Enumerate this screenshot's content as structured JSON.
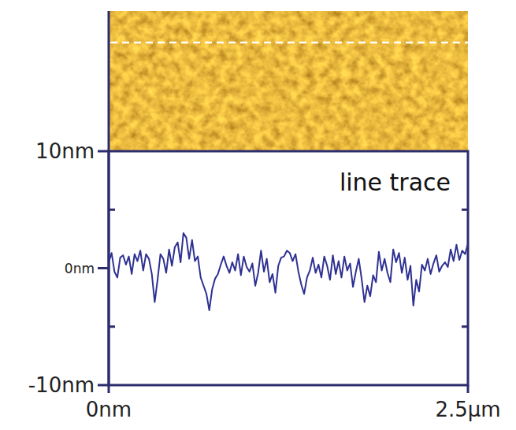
{
  "chart_data": {
    "type": "line",
    "annotation": "line trace",
    "color": "#2e3192",
    "xlim": [
      0,
      2.5
    ],
    "xticks": [
      {
        "value": 0,
        "label": "0nm"
      },
      {
        "value": 2.5,
        "label": "2.5µm"
      }
    ],
    "ylim": [
      -10,
      10
    ],
    "yticks": [
      {
        "value": -10,
        "label": "-10nm"
      },
      {
        "value": 0,
        "label": "0nm"
      },
      {
        "value": 10,
        "label": "10nm"
      }
    ],
    "x": [
      0,
      0.02,
      0.04,
      0.06,
      0.08,
      0.1,
      0.12,
      0.14,
      0.16,
      0.18,
      0.2,
      0.22,
      0.24,
      0.26,
      0.28,
      0.3,
      0.32,
      0.34,
      0.36,
      0.38,
      0.4,
      0.42,
      0.44,
      0.46,
      0.48,
      0.5,
      0.52,
      0.54,
      0.56,
      0.58,
      0.6,
      0.62,
      0.64,
      0.66,
      0.68,
      0.7,
      0.72,
      0.74,
      0.76,
      0.78,
      0.8,
      0.82,
      0.84,
      0.86,
      0.88,
      0.9,
      0.92,
      0.94,
      0.96,
      0.98,
      1.0,
      1.02,
      1.04,
      1.06,
      1.08,
      1.1,
      1.12,
      1.14,
      1.16,
      1.18,
      1.2,
      1.22,
      1.24,
      1.26,
      1.28,
      1.3,
      1.32,
      1.34,
      1.36,
      1.38,
      1.4,
      1.42,
      1.44,
      1.46,
      1.48,
      1.5,
      1.52,
      1.54,
      1.56,
      1.58,
      1.6,
      1.62,
      1.64,
      1.66,
      1.68,
      1.7,
      1.72,
      1.74,
      1.76,
      1.78,
      1.8,
      1.82,
      1.84,
      1.86,
      1.88,
      1.9,
      1.92,
      1.94,
      1.96,
      1.98,
      2.0,
      2.02,
      2.04,
      2.06,
      2.08,
      2.1,
      2.12,
      2.14,
      2.16,
      2.18,
      2.2,
      2.22,
      2.24,
      2.26,
      2.28,
      2.3,
      2.32,
      2.34,
      2.36,
      2.38,
      2.4,
      2.42,
      2.44,
      2.46,
      2.48,
      2.5
    ],
    "values": [
      0.5,
      1.3,
      -0.3,
      -0.8,
      0.9,
      1.1,
      0.3,
      1.0,
      -0.5,
      1.2,
      0.6,
      1.5,
      -0.2,
      1.2,
      0.8,
      -0.5,
      -2.9,
      -1.0,
      1.2,
      0.8,
      -0.4,
      1.6,
      0.2,
      1.8,
      2.2,
      0.5,
      3.0,
      2.6,
      0.8,
      2.4,
      0.6,
      1.0,
      -0.8,
      -1.5,
      -2.2,
      -3.6,
      -1.8,
      -0.9,
      -0.5,
      0.3,
      1.0,
      0.2,
      -0.4,
      0.5,
      -0.2,
      1.2,
      -0.6,
      1.0,
      0.1,
      -0.3,
      0.4,
      -1.5,
      -0.4,
      1.5,
      -0.3,
      0.8,
      -1.2,
      -0.5,
      -2.1,
      0.2,
      0.9,
      1.0,
      1.5,
      1.3,
      0.6,
      1.2,
      -0.3,
      -1.4,
      -2.2,
      -0.8,
      -0.2,
      0.9,
      -0.4,
      0.3,
      -0.8,
      1.0,
      0.2,
      -1.0,
      1.1,
      -0.5,
      0.6,
      -0.8,
      1.0,
      -0.2,
      0.4,
      -1.6,
      -0.3,
      0.8,
      -0.9,
      -2.9,
      -1.5,
      -2.4,
      -0.6,
      -1.2,
      1.4,
      -0.2,
      0.8,
      -0.4,
      -1.2,
      1.6,
      0.5,
      1.3,
      -0.4,
      0.9,
      -1.0,
      0.2,
      -3.2,
      -1.0,
      -2.0,
      0.3,
      -0.2,
      0.8,
      -0.5,
      0.4,
      1.1,
      -0.3,
      0.2,
      0.5,
      0.1,
      1.6,
      0.6,
      2.0,
      0.7,
      1.5,
      1.2,
      2.1
    ]
  }
}
